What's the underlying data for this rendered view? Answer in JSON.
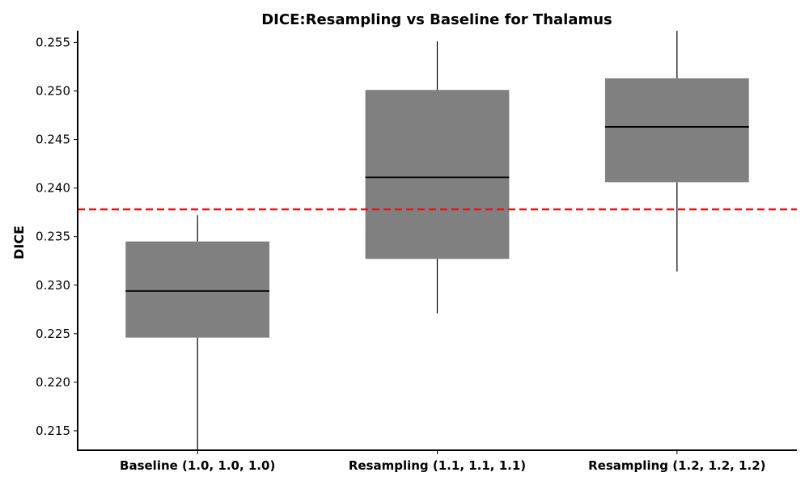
{
  "chart_data": {
    "type": "box",
    "title": "DICE:Resampling vs Baseline for Thalamus",
    "xlabel": "",
    "ylabel": "DICE",
    "ylim": [
      0.213,
      0.2562
    ],
    "yticks": [
      "0.215",
      "0.220",
      "0.225",
      "0.230",
      "0.235",
      "0.240",
      "0.245",
      "0.250",
      "0.255"
    ],
    "categories": [
      "Baseline (1.0, 1.0, 1.0)",
      "Resampling (1.1, 1.1, 1.1)",
      "Resampling (1.2, 1.2, 1.2)"
    ],
    "boxes": [
      {
        "whisker_low": 0.213,
        "q1": 0.2246,
        "median": 0.2294,
        "q3": 0.2345,
        "whisker_high": 0.2372
      },
      {
        "whisker_low": 0.2271,
        "q1": 0.2327,
        "median": 0.2411,
        "q3": 0.2501,
        "whisker_high": 0.2551
      },
      {
        "whisker_low": 0.2314,
        "q1": 0.2406,
        "median": 0.2463,
        "q3": 0.2513,
        "whisker_high": 0.2562
      }
    ],
    "reference_line": {
      "value": 0.2378,
      "style": "dashed"
    },
    "grid": false,
    "colors": {
      "box_fill": "#808080",
      "median": "#000000",
      "whisker": "#000000",
      "reference": "#ee1111"
    }
  }
}
